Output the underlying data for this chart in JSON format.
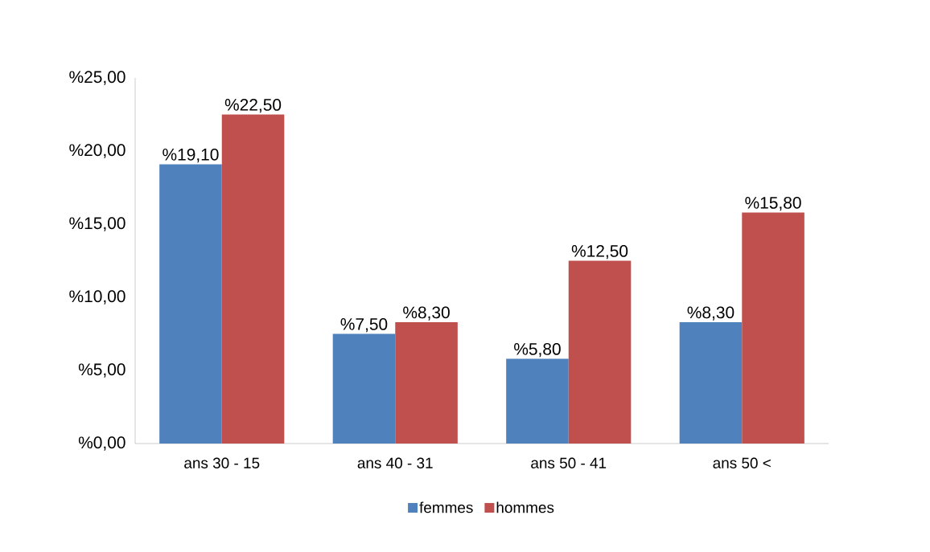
{
  "chart_data": {
    "type": "bar",
    "categories": [
      "ans 30 - 15",
      "ans 40 - 31",
      "ans 50 - 41",
      "ans 50 <"
    ],
    "series": [
      {
        "name": "femmes",
        "color": "#4f81bd",
        "values": [
          19.1,
          7.5,
          5.8,
          8.3
        ],
        "value_labels": [
          "%19,10",
          "%7,50",
          "%5,80",
          "%8,30"
        ]
      },
      {
        "name": "hommes",
        "color": "#c0504d",
        "values": [
          22.5,
          8.3,
          12.5,
          15.8
        ],
        "value_labels": [
          "%22,50",
          "%8,30",
          "%12,50",
          "%15,80"
        ]
      }
    ],
    "ylim": [
      0,
      25
    ],
    "yticks": [
      {
        "value": 0,
        "label": "%0,00"
      },
      {
        "value": 5,
        "label": "%5,00"
      },
      {
        "value": 10,
        "label": "%10,00"
      },
      {
        "value": 15,
        "label": "%15,00"
      },
      {
        "value": 20,
        "label": "%20,00"
      },
      {
        "value": 25,
        "label": "%25,00"
      }
    ],
    "legend": "bottom"
  }
}
